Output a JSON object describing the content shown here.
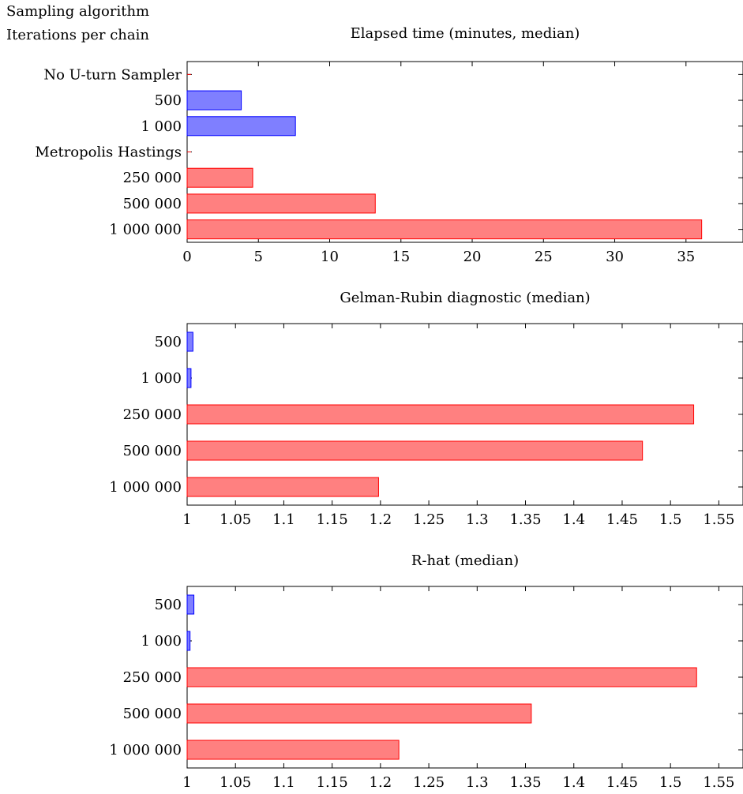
{
  "header": {
    "line1": "Sampling algorithm",
    "line2": "Iterations per chain"
  },
  "colors": {
    "nuts_fill": "#7f7fff",
    "nuts_stroke": "#0000ff",
    "mh_fill": "#ff8080",
    "mh_stroke": "#ff0000",
    "axis": "#000000"
  },
  "chart_data": [
    {
      "type": "bar",
      "orientation": "horizontal",
      "title": "Elapsed time (minutes, median)",
      "xlabel": "",
      "ylabel": "",
      "xlim": [
        0,
        39
      ],
      "xticks": [
        0,
        5,
        10,
        15,
        20,
        25,
        30,
        35
      ],
      "xtick_labels": [
        "0",
        "5",
        "10",
        "15",
        "20",
        "25",
        "30",
        "35"
      ],
      "grid": false,
      "categories": [
        "No U-turn Sampler",
        "500",
        "1 000",
        "Metropolis Hastings",
        "250 000",
        "500 000",
        "1 000 000"
      ],
      "groups": [
        "none",
        "nuts",
        "nuts",
        "none",
        "mh",
        "mh",
        "mh"
      ],
      "values": [
        0,
        3.8,
        7.6,
        0,
        4.6,
        13.2,
        36.1
      ]
    },
    {
      "type": "bar",
      "orientation": "horizontal",
      "title": "Gelman-Rubin diagnostic (median)",
      "xlabel": "",
      "ylabel": "",
      "xlim": [
        1,
        1.575
      ],
      "xticks": [
        1,
        1.05,
        1.1,
        1.15,
        1.2,
        1.25,
        1.3,
        1.35,
        1.4,
        1.45,
        1.5,
        1.55
      ],
      "xtick_labels": [
        "1",
        "1.05",
        "1.1",
        "1.15",
        "1.2",
        "1.25",
        "1.3",
        "1.35",
        "1.4",
        "1.45",
        "1.5",
        "1.55"
      ],
      "grid": false,
      "categories": [
        "500",
        "1 000",
        "250 000",
        "500 000",
        "1 000 000"
      ],
      "groups": [
        "nuts",
        "nuts",
        "mh",
        "mh",
        "mh"
      ],
      "values": [
        1.006,
        1.004,
        1.524,
        1.471,
        1.198
      ]
    },
    {
      "type": "bar",
      "orientation": "horizontal",
      "title": "R-hat (median)",
      "xlabel": "",
      "ylabel": "",
      "xlim": [
        1,
        1.575
      ],
      "xticks": [
        1,
        1.05,
        1.1,
        1.15,
        1.2,
        1.25,
        1.3,
        1.35,
        1.4,
        1.45,
        1.5,
        1.55
      ],
      "xtick_labels": [
        "1",
        "1.05",
        "1.1",
        "1.15",
        "1.2",
        "1.25",
        "1.3",
        "1.35",
        "1.4",
        "1.45",
        "1.5",
        "1.55"
      ],
      "grid": false,
      "categories": [
        "500",
        "1 000",
        "250 000",
        "500 000",
        "1 000 000"
      ],
      "groups": [
        "nuts",
        "nuts",
        "mh",
        "mh",
        "mh"
      ],
      "values": [
        1.007,
        1.003,
        1.527,
        1.356,
        1.219
      ]
    }
  ]
}
